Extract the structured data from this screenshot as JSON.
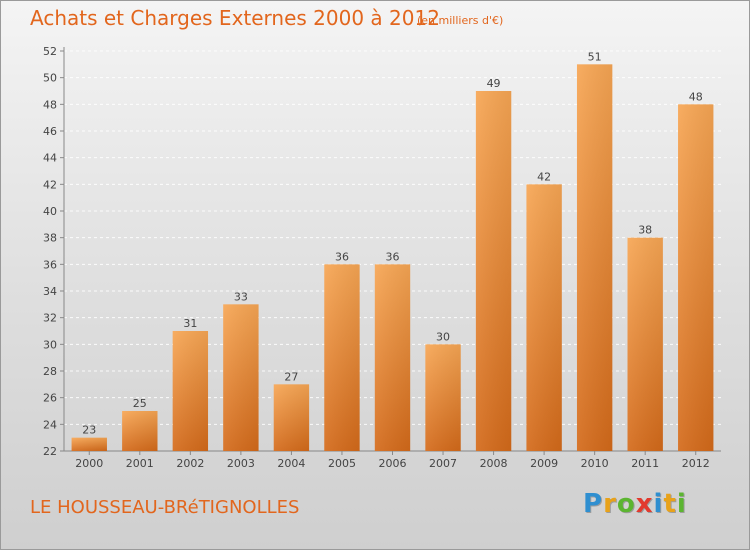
{
  "header": {
    "title": "Achats et Charges Externes 2000 à 2012",
    "unit": "(en milliers d'€)"
  },
  "footer": {
    "commune": "LE HOUSSEAU-BRéTIGNOLLES",
    "brand": "Proxiti",
    "brand_letters": [
      {
        "ch": "P",
        "color": "#2f8fd0"
      },
      {
        "ch": "r",
        "color": "#e8a21a"
      },
      {
        "ch": "o",
        "color": "#5cb531"
      },
      {
        "ch": "x",
        "color": "#e23a2e"
      },
      {
        "ch": "i",
        "color": "#2f8fd0"
      },
      {
        "ch": "t",
        "color": "#e8a21a"
      },
      {
        "ch": "i",
        "color": "#5cb531"
      }
    ]
  },
  "colors": {
    "accent": "#e2661d",
    "bar_light": "#f7a654",
    "bar_dark": "#d46a1a"
  },
  "chart_data": {
    "type": "bar",
    "categories": [
      "2000",
      "2001",
      "2002",
      "2003",
      "2004",
      "2005",
      "2006",
      "2007",
      "2008",
      "2009",
      "2010",
      "2011",
      "2012"
    ],
    "values": [
      23,
      25,
      31,
      33,
      27,
      36,
      36,
      30,
      49,
      42,
      51,
      38,
      48
    ],
    "ylim": [
      22,
      52
    ],
    "yticks": [
      22,
      24,
      26,
      28,
      30,
      32,
      34,
      36,
      38,
      40,
      42,
      44,
      46,
      48,
      50,
      52
    ],
    "grid": true,
    "data_labels": true
  }
}
